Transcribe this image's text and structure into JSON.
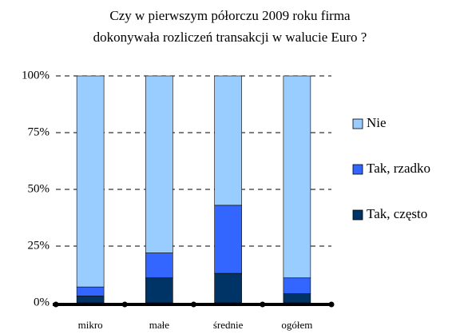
{
  "chart_data": {
    "type": "stacked_bar",
    "title_lines": [
      "Czy w pierwszym półorczu 2009 roku firma",
      "dokonywała rozliczeń transakcji w walucie Euro ?"
    ],
    "categories": [
      "mikro",
      "małe",
      "średnie",
      "ogółem"
    ],
    "series": [
      {
        "name": "Tak, często",
        "color": "#003366",
        "values": [
          3,
          11,
          13,
          4
        ]
      },
      {
        "name": "Tak, rzadko",
        "color": "#3366ff",
        "values": [
          4,
          11,
          30,
          7
        ]
      },
      {
        "name": "Nie",
        "color": "#99ccff",
        "values": [
          93,
          78,
          57,
          89
        ]
      }
    ],
    "ylim": [
      0,
      100
    ],
    "yticks": [
      {
        "value": 0,
        "label": "0%"
      },
      {
        "value": 25,
        "label": "25%"
      },
      {
        "value": 50,
        "label": "50%"
      },
      {
        "value": 75,
        "label": "75%"
      },
      {
        "value": 100,
        "label": "100%"
      }
    ],
    "grid": true,
    "legend": "right"
  }
}
